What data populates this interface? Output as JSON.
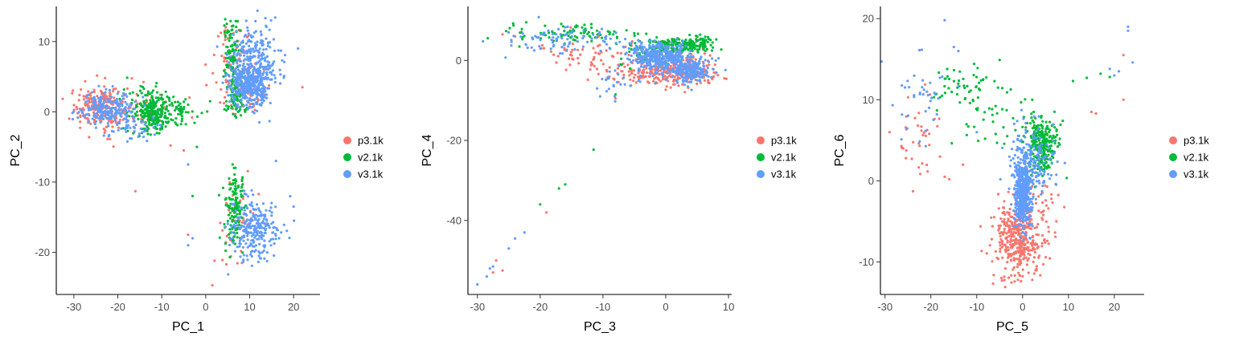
{
  "colors": {
    "p3.1k": "#F8766D",
    "v2.1k": "#00BA38",
    "v3.1k": "#619CFF"
  },
  "chart_data": [
    {
      "type": "scatter",
      "xlabel": "PC_1",
      "ylabel": "PC_2",
      "xlim": [
        -34,
        26
      ],
      "ylim": [
        -26,
        15
      ],
      "xticks": [
        -30,
        -20,
        -10,
        0,
        10,
        20
      ],
      "yticks": [
        -20,
        -10,
        0,
        10
      ],
      "legend": [
        "p3.1k",
        "v2.1k",
        "v3.1k"
      ],
      "legend_position": "right",
      "series": [
        {
          "name": "p3.1k",
          "color": "#F8766D",
          "clusters": [
            {
              "cx": -24,
              "cy": 0.5,
              "sx": 3.2,
              "sy": 1.5,
              "n": 220
            },
            {
              "cx": 6,
              "cy": 8,
              "sx": 2.0,
              "sy": 3.0,
              "n": 70
            },
            {
              "cx": 9,
              "cy": 3,
              "sx": 2.5,
              "sy": 2.0,
              "n": 60
            },
            {
              "cx": 8,
              "cy": -16,
              "sx": 2.2,
              "sy": 3.0,
              "n": 40
            },
            {
              "cx": -12,
              "cy": 0,
              "sx": 3.0,
              "sy": 1.5,
              "n": 30
            }
          ],
          "points": [
            [
              -16,
              -11.3
            ],
            [
              1.5,
              -24.7
            ],
            [
              -4,
              -17.5
            ],
            [
              2,
              -21.2
            ],
            [
              -5,
              -5.5
            ],
            [
              -8,
              -4.8
            ],
            [
              22,
              3.5
            ]
          ]
        },
        {
          "name": "v2.1k",
          "color": "#00BA38",
          "clusters": [
            {
              "cx": -12,
              "cy": 0,
              "sx": 2.5,
              "sy": 1.5,
              "n": 260
            },
            {
              "cx": -6,
              "cy": 0.3,
              "sx": 2.5,
              "sy": 1.0,
              "n": 50
            },
            {
              "cx": 6,
              "cy": 9,
              "sx": 1.0,
              "sy": 2.5,
              "n": 90
            },
            {
              "cx": 7,
              "cy": 2,
              "sx": 1.2,
              "sy": 1.5,
              "n": 90
            },
            {
              "cx": 6.5,
              "cy": -14,
              "sx": 1.0,
              "sy": 2.5,
              "n": 150
            }
          ],
          "points": [
            [
              -2,
              -5.0
            ],
            [
              -3,
              -12.0
            ],
            [
              1,
              1.5
            ]
          ]
        },
        {
          "name": "v3.1k",
          "color": "#619CFF",
          "clusters": [
            {
              "cx": -22,
              "cy": 0.5,
              "sx": 3.0,
              "sy": 1.2,
              "n": 200
            },
            {
              "cx": 10,
              "cy": 4,
              "sx": 2.3,
              "sy": 1.6,
              "n": 380
            },
            {
              "cx": 11,
              "cy": 8,
              "sx": 3.0,
              "sy": 2.5,
              "n": 200
            },
            {
              "cx": 11,
              "cy": -16.5,
              "sx": 2.6,
              "sy": 2.2,
              "n": 260
            },
            {
              "cx": -17,
              "cy": -2.5,
              "sx": 3.0,
              "sy": 1.0,
              "n": 40
            }
          ],
          "points": [
            [
              -4,
              -7.5
            ],
            [
              -4,
              -19
            ],
            [
              -3,
              -18
            ],
            [
              20,
              -13.5
            ],
            [
              16,
              -7
            ],
            [
              21,
              9
            ]
          ]
        }
      ]
    },
    {
      "type": "scatter",
      "xlabel": "PC_3",
      "ylabel": "PC_4",
      "xlim": [
        -31.5,
        10.5
      ],
      "ylim": [
        -58.5,
        13.5
      ],
      "xticks": [
        -30,
        -20,
        -10,
        0,
        10
      ],
      "yticks": [
        -40,
        -20,
        0
      ],
      "legend": [
        "p3.1k",
        "v2.1k",
        "v3.1k"
      ],
      "legend_position": "right",
      "series": [
        {
          "name": "p3.1k",
          "color": "#F8766D",
          "clusters": [
            {
              "cx": 0,
              "cy": -3,
              "sx": 4.5,
              "sy": 1.5,
              "n": 220
            },
            {
              "cx": -12,
              "cy": 1.5,
              "sx": 5.0,
              "sy": 2.0,
              "n": 60
            },
            {
              "cx": 3.5,
              "cy": -1.0,
              "sx": 2.0,
              "sy": 2.5,
              "n": 80
            }
          ],
          "points": [
            [
              -27,
              -50
            ],
            [
              -26,
              -52.5
            ],
            [
              -27.5,
              -53
            ],
            [
              -19,
              -38
            ],
            [
              -24,
              6
            ],
            [
              -26,
              6.5
            ],
            [
              -8,
              -9.5
            ]
          ]
        },
        {
          "name": "v2.1k",
          "color": "#00BA38",
          "clusters": [
            {
              "cx": 3,
              "cy": 4.0,
              "sx": 2.5,
              "sy": 1.0,
              "n": 180
            },
            {
              "cx": -14,
              "cy": 6.5,
              "sx": 5.5,
              "sy": 1.3,
              "n": 90
            },
            {
              "cx": -3,
              "cy": 2,
              "sx": 2.5,
              "sy": 2.0,
              "n": 40
            }
          ],
          "points": [
            [
              -11.5,
              -22.3
            ],
            [
              -16,
              -31
            ],
            [
              -17,
              -32
            ],
            [
              -20,
              -36
            ],
            [
              -8,
              -8.5
            ]
          ]
        },
        {
          "name": "v3.1k",
          "color": "#619CFF",
          "clusters": [
            {
              "cx": -1,
              "cy": 1,
              "sx": 2.5,
              "sy": 2.0,
              "n": 380
            },
            {
              "cx": 4,
              "cy": -2.5,
              "sx": 1.5,
              "sy": 1.5,
              "n": 220
            },
            {
              "cx": -16,
              "cy": 5,
              "sx": 5.0,
              "sy": 1.8,
              "n": 90
            },
            {
              "cx": -8,
              "cy": -6,
              "sx": 1.8,
              "sy": 1.8,
              "n": 20
            }
          ],
          "points": [
            [
              -30,
              -56
            ],
            [
              -28.5,
              -54
            ],
            [
              -25,
              -47
            ],
            [
              -24,
              -44.5
            ],
            [
              -22.5,
              -43
            ],
            [
              -28,
              -52
            ],
            [
              -27.5,
              -51.5
            ]
          ]
        }
      ]
    },
    {
      "type": "scatter",
      "xlabel": "PC_5",
      "ylabel": "PC_6",
      "xlim": [
        -31,
        26.5
      ],
      "ylim": [
        -14,
        21.5
      ],
      "xticks": [
        -30,
        -20,
        -10,
        0,
        10,
        20
      ],
      "yticks": [
        -10,
        0,
        10,
        20
      ],
      "legend": [
        "p3.1k",
        "v2.1k",
        "v3.1k"
      ],
      "legend_position": "right",
      "series": [
        {
          "name": "p3.1k",
          "color": "#F8766D",
          "clusters": [
            {
              "cx": -1,
              "cy": -7.5,
              "sx": 2.5,
              "sy": 2.0,
              "n": 340
            },
            {
              "cx": 1,
              "cy": -4.5,
              "sx": 3.5,
              "sy": 2.0,
              "n": 90
            },
            {
              "cx": -23,
              "cy": 5.5,
              "sx": 3.0,
              "sy": 2.5,
              "n": 35
            }
          ],
          "points": [
            [
              -29,
              6
            ],
            [
              -26,
              4
            ],
            [
              22,
              10
            ],
            [
              22,
              15.5
            ],
            [
              15,
              8.5
            ],
            [
              16,
              8.3
            ],
            [
              -13,
              2
            ],
            [
              -17,
              0.5
            ],
            [
              -16,
              0.2
            ],
            [
              -1,
              -12.2
            ],
            [
              -4,
              -11.8
            ]
          ]
        },
        {
          "name": "v2.1k",
          "color": "#00BA38",
          "clusters": [
            {
              "cx": 4,
              "cy": 4.5,
              "sx": 1.8,
              "sy": 1.8,
              "n": 260
            },
            {
              "cx": -9,
              "cy": 9,
              "sx": 5.0,
              "sy": 2.5,
              "n": 60
            },
            {
              "cx": -14,
              "cy": 12,
              "sx": 3.0,
              "sy": 1.2,
              "n": 25
            }
          ],
          "points": [
            [
              11,
              12.3
            ],
            [
              14,
              12.7
            ],
            [
              17,
              13.2
            ],
            [
              19,
              12.8
            ],
            [
              -5,
              14.9
            ]
          ]
        },
        {
          "name": "v3.1k",
          "color": "#619CFF",
          "clusters": [
            {
              "cx": 0,
              "cy": -1.5,
              "sx": 1.0,
              "sy": 2.2,
              "n": 420
            },
            {
              "cx": 2,
              "cy": 2,
              "sx": 2.5,
              "sy": 2.5,
              "n": 170
            },
            {
              "cx": -22,
              "cy": 10,
              "sx": 3.0,
              "sy": 2.5,
              "n": 40
            }
          ],
          "points": [
            [
              -17,
              19.8
            ],
            [
              -15,
              16.5
            ],
            [
              -14,
              16
            ],
            [
              23,
              18.5
            ],
            [
              23,
              19
            ],
            [
              24,
              14.6
            ],
            [
              20,
              13
            ],
            [
              21,
              13.5
            ],
            [
              19,
              13.8
            ],
            [
              -10,
              6
            ]
          ]
        }
      ]
    }
  ]
}
